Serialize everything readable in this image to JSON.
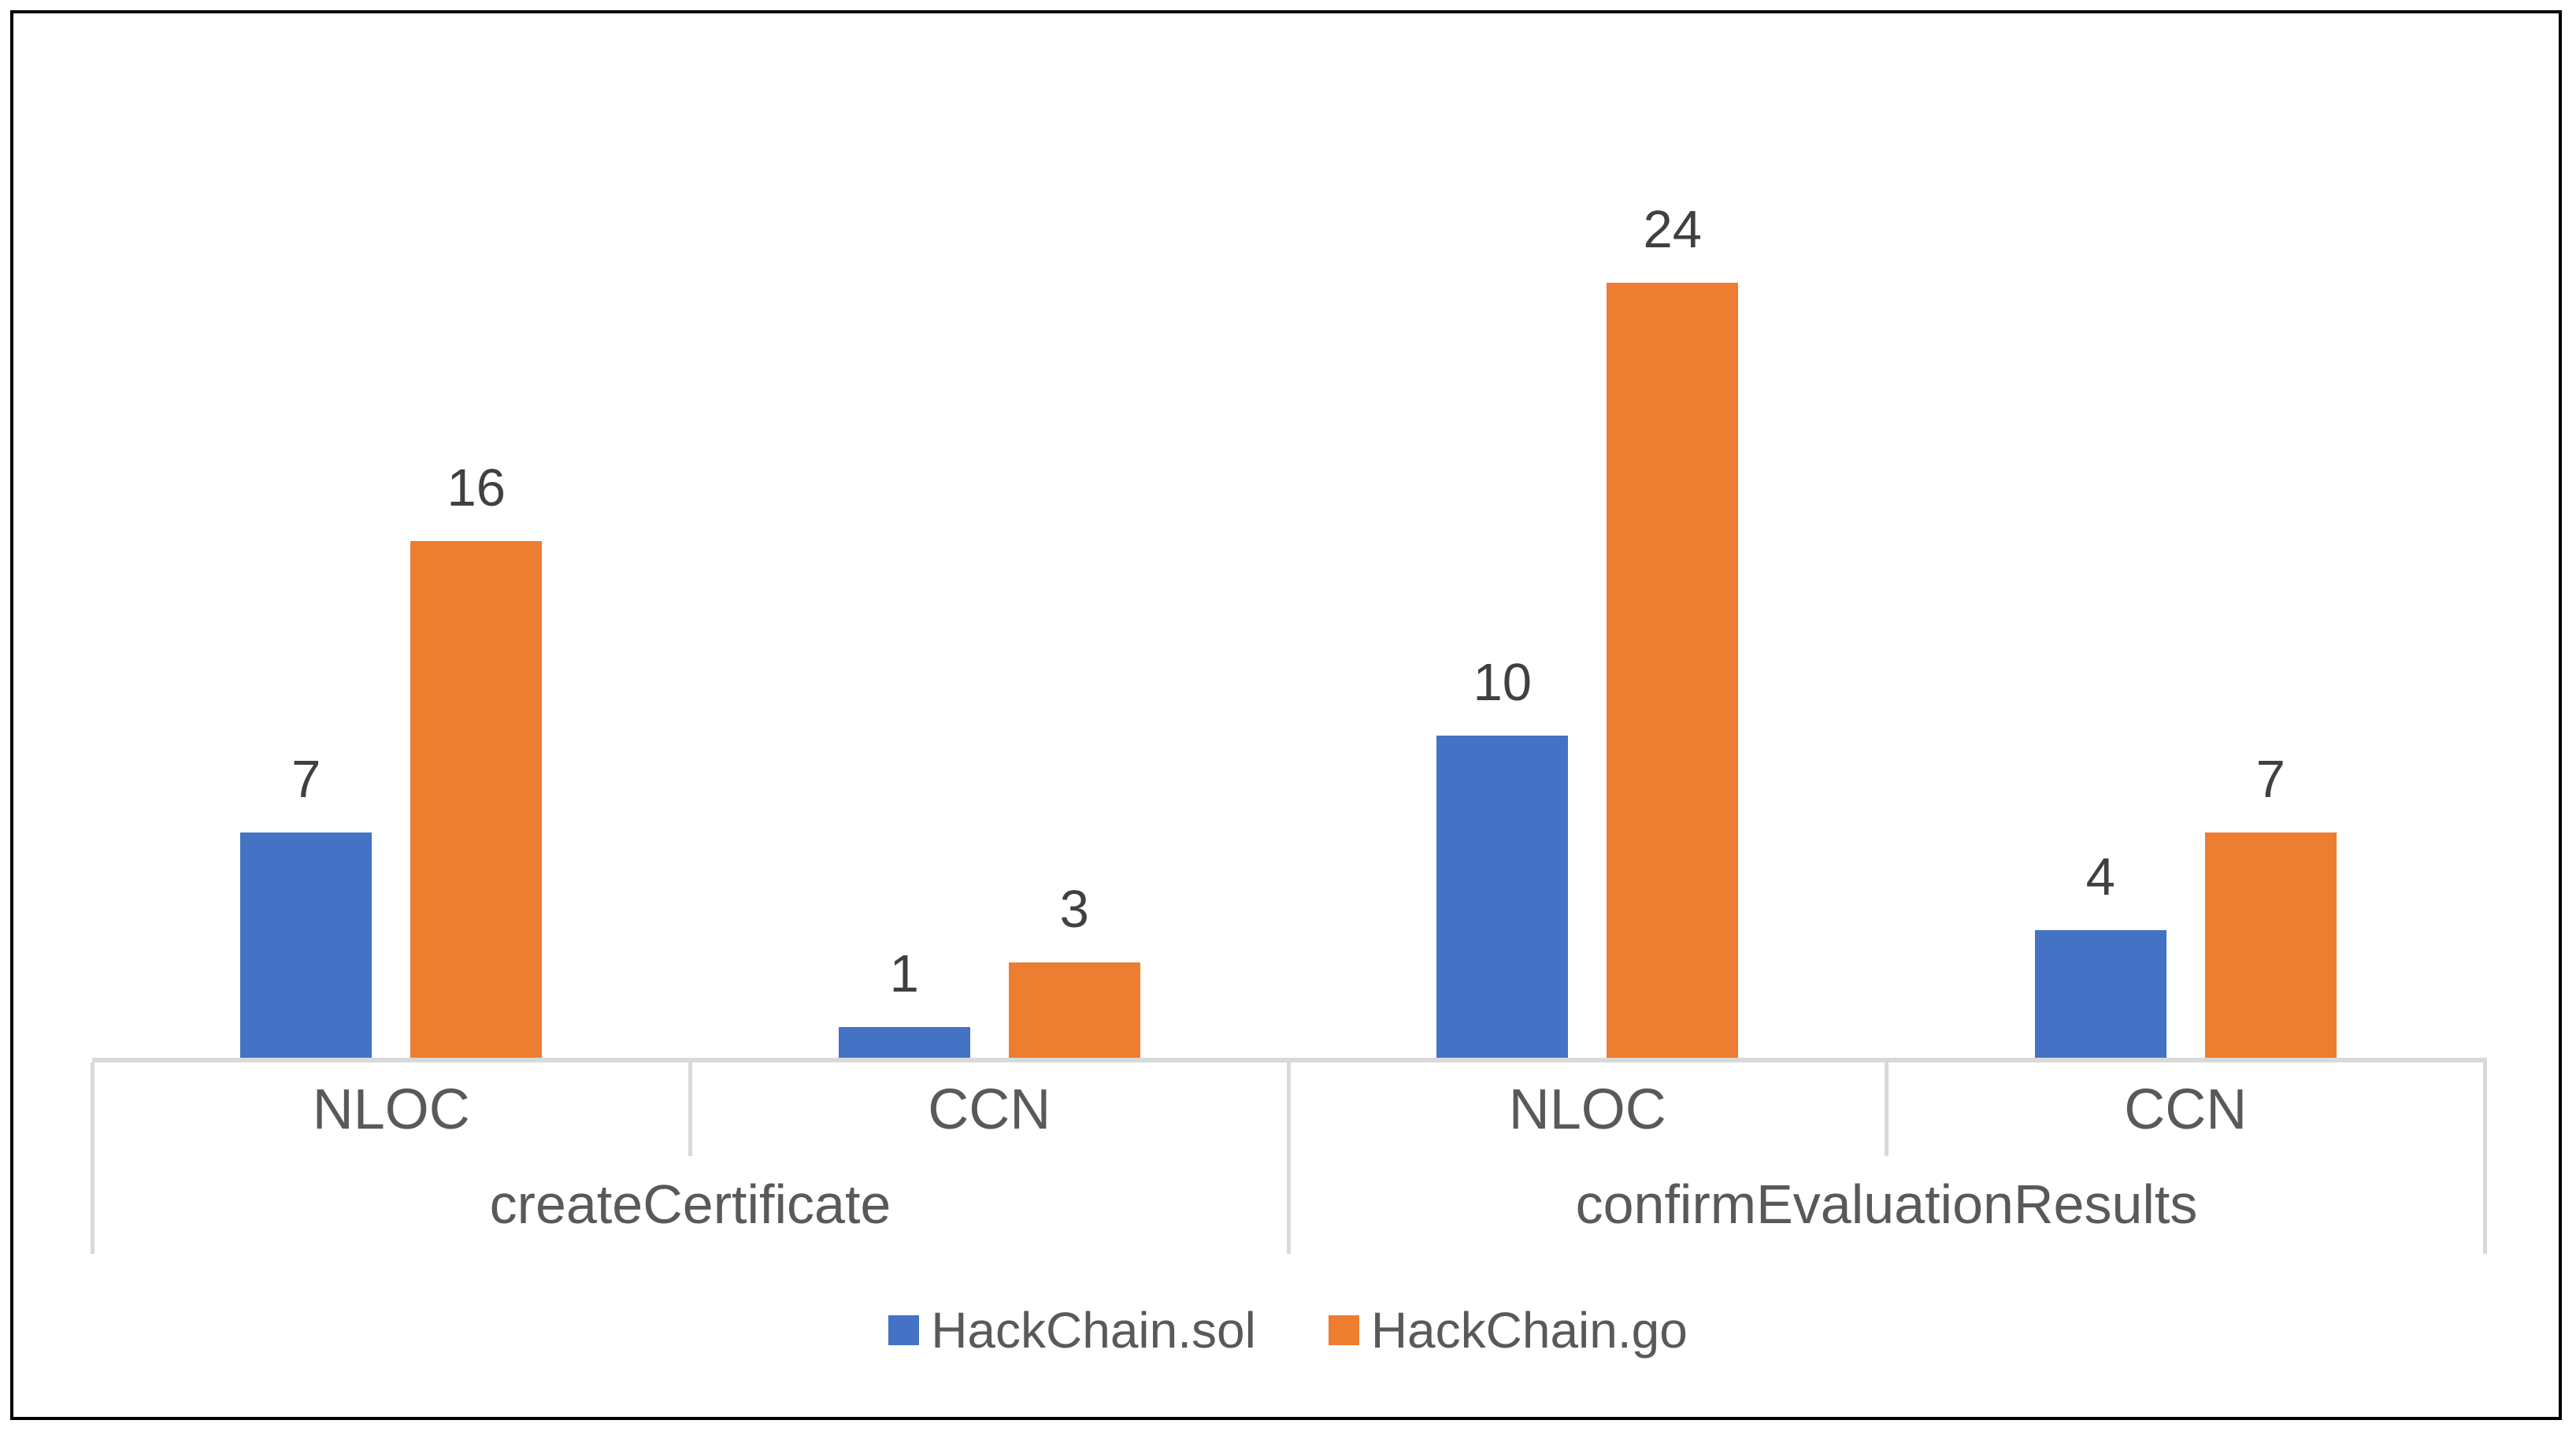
{
  "chart_data": {
    "type": "bar",
    "title": "",
    "xlabel": "",
    "ylabel": "",
    "ylim": [
      0,
      24
    ],
    "grid": false,
    "value_labels_shown": true,
    "legend_position": "bottom",
    "groups": [
      {
        "label": "createCertificate",
        "categories": [
          "NLOC",
          "CCN"
        ]
      },
      {
        "label": "confirmEvaluationResults",
        "categories": [
          "NLOC",
          "CCN"
        ]
      }
    ],
    "slot_categories": [
      "NLOC",
      "CCN",
      "NLOC",
      "CCN"
    ],
    "series": [
      {
        "name": "HackChain.sol",
        "color": "#4472C4",
        "values": [
          7,
          1,
          10,
          4
        ]
      },
      {
        "name": "HackChain.go",
        "color": "#ED7D31",
        "values": [
          16,
          3,
          24,
          7
        ]
      }
    ],
    "colors": {
      "axis_line": "#D9D9D9",
      "data_label_text": "#404040",
      "axis_text": "#595959",
      "frame_border": "#000000",
      "background": "#FFFFFF"
    }
  },
  "legend": {
    "items": [
      {
        "label": "HackChain.sol",
        "color": "#4472C4"
      },
      {
        "label": "HackChain.go",
        "color": "#ED7D31"
      }
    ]
  }
}
